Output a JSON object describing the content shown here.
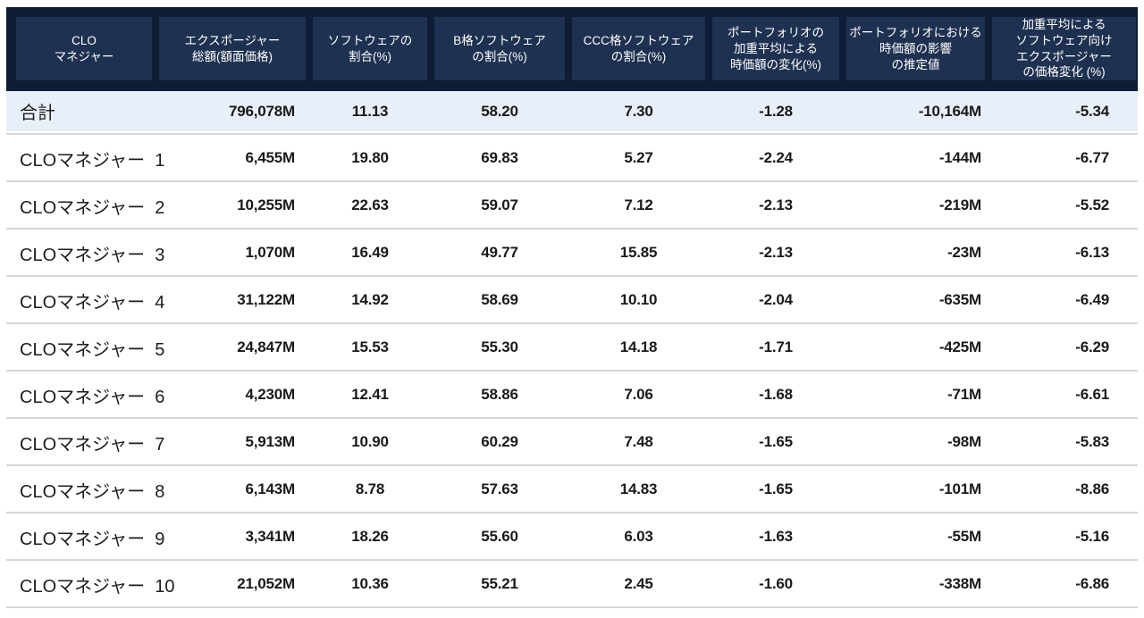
{
  "table": {
    "columns": [
      {
        "id": "manager",
        "label": "CLO\nマネジャー"
      },
      {
        "id": "total-exposure",
        "label": "エクスポージャー\n総額(額面価格)"
      },
      {
        "id": "software-share",
        "label": "ソフトウェアの\n割合(%)"
      },
      {
        "id": "b-rated-share",
        "label": "B格ソフトウェア\nの割合(%)"
      },
      {
        "id": "ccc-rated-share",
        "label": "CCC格ソフトウェア\nの割合(%)"
      },
      {
        "id": "wavg-mv-change",
        "label": "ポートフォリオの\n加重平均による\n時価額の変化(%)"
      },
      {
        "id": "mv-impact-estimate",
        "label": "ポートフォリオにおける\n時価額の影響\nの推定値"
      },
      {
        "id": "wavg-price-change",
        "label": "加重平均による\nソフトウェア向け\nエクスポージャー\nの価格変化 (%)"
      }
    ],
    "total_row": {
      "label": "合計",
      "values": [
        "796,078M",
        "11.13",
        "58.20",
        "7.30",
        "-1.28",
        "-10,164M",
        "-5.34"
      ]
    },
    "rows": [
      {
        "label": "CLOマネジャー  1",
        "values": [
          "6,455M",
          "19.80",
          "69.83",
          "5.27",
          "-2.24",
          "-144M",
          "-6.77"
        ]
      },
      {
        "label": "CLOマネジャー  2",
        "values": [
          "10,255M",
          "22.63",
          "59.07",
          "7.12",
          "-2.13",
          "-219M",
          "-5.52"
        ]
      },
      {
        "label": "CLOマネジャー  3",
        "values": [
          "1,070M",
          "16.49",
          "49.77",
          "15.85",
          "-2.13",
          "-23M",
          "-6.13"
        ]
      },
      {
        "label": "CLOマネジャー  4",
        "values": [
          "31,122M",
          "14.92",
          "58.69",
          "10.10",
          "-2.04",
          "-635M",
          "-6.49"
        ]
      },
      {
        "label": "CLOマネジャー  5",
        "values": [
          "24,847M",
          "15.53",
          "55.30",
          "14.18",
          "-1.71",
          "-425M",
          "-6.29"
        ]
      },
      {
        "label": "CLOマネジャー  6",
        "values": [
          "4,230M",
          "12.41",
          "58.86",
          "7.06",
          "-1.68",
          "-71M",
          "-6.61"
        ]
      },
      {
        "label": "CLOマネジャー  7",
        "values": [
          "5,913M",
          "10.90",
          "60.29",
          "7.48",
          "-1.65",
          "-98M",
          "-5.83"
        ]
      },
      {
        "label": "CLOマネジャー  8",
        "values": [
          "6,143M",
          "8.78",
          "57.63",
          "14.83",
          "-1.65",
          "-101M",
          "-8.86"
        ]
      },
      {
        "label": "CLOマネジャー  9",
        "values": [
          "3,341M",
          "18.26",
          "55.60",
          "6.03",
          "-1.63",
          "-55M",
          "-5.16"
        ]
      },
      {
        "label": "CLOマネジャー  10",
        "values": [
          "21,052M",
          "10.36",
          "55.21",
          "2.45",
          "-1.60",
          "-338M",
          "-6.86"
        ]
      }
    ]
  },
  "colors": {
    "header_bg": "#0e1c36",
    "header_cell_bg": "#1e3150",
    "total_row_bg": "#e9eff8",
    "separator": "#d6d6d6"
  }
}
